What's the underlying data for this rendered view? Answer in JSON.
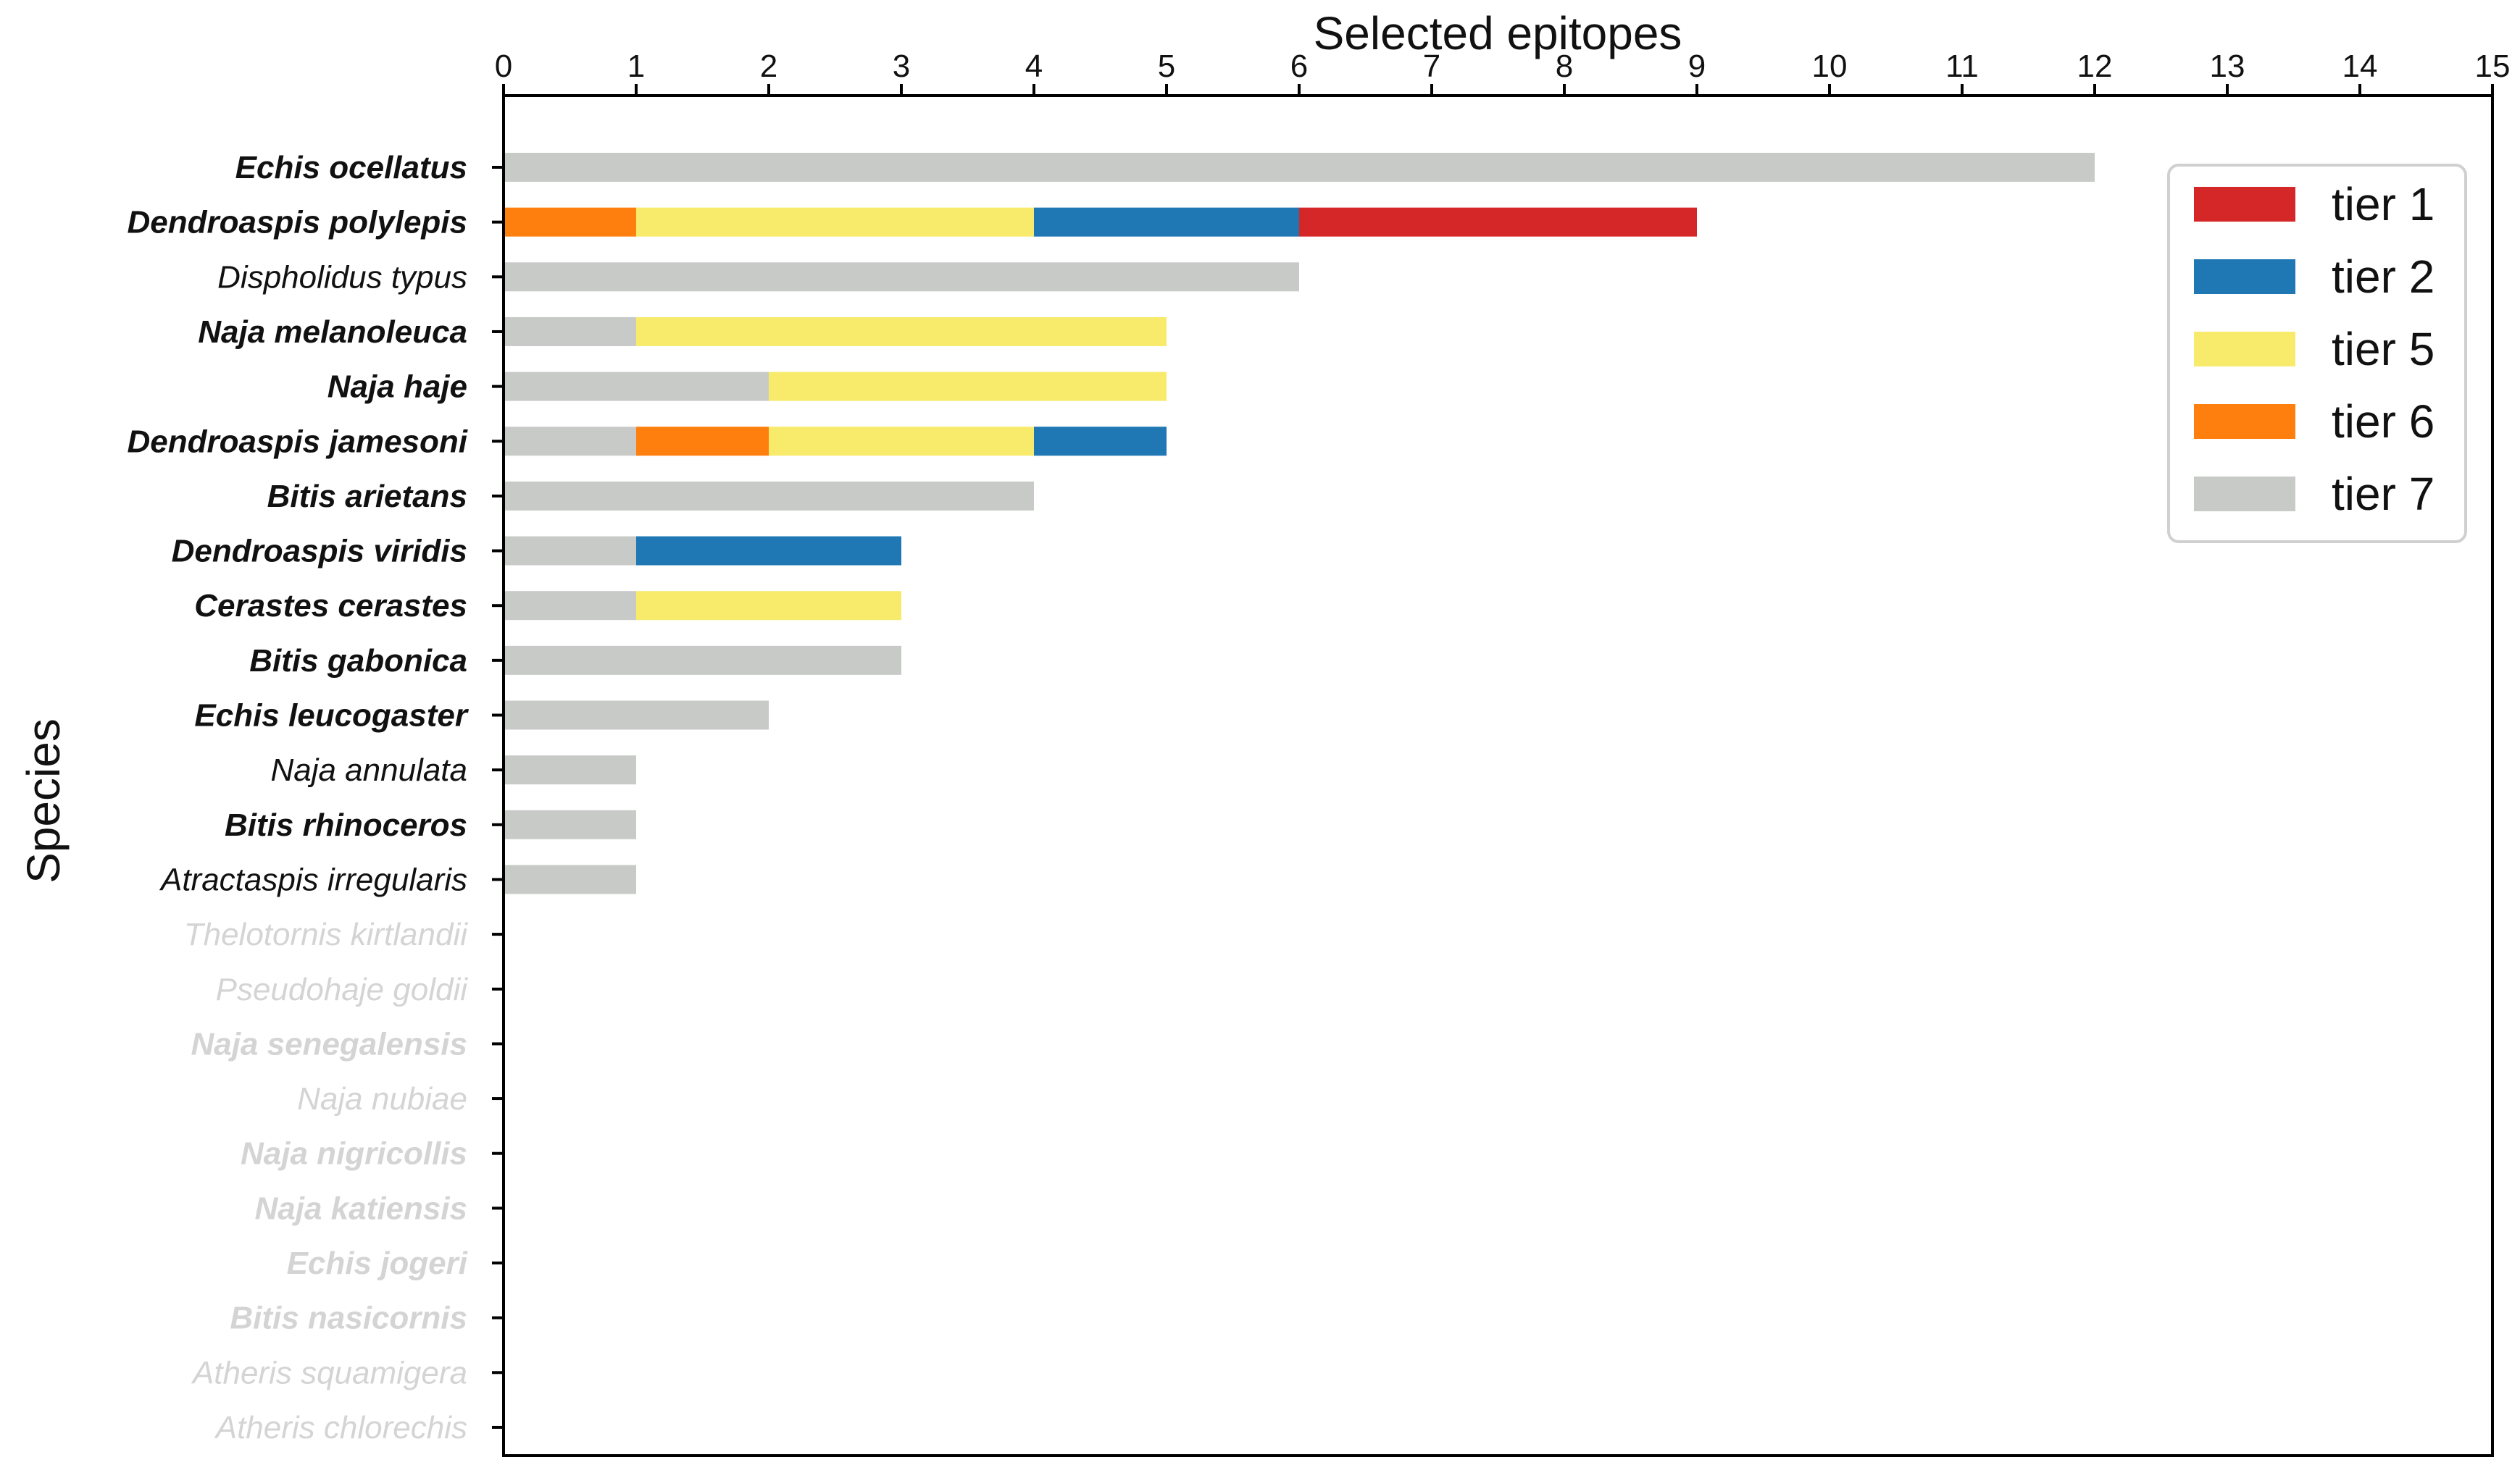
{
  "chart_data": {
    "type": "bar",
    "orientation": "horizontal",
    "stacked": true,
    "xlabel": "Selected epitopes",
    "ylabel": "Species",
    "xlim": [
      0,
      15
    ],
    "x_ticks": [
      0,
      1,
      2,
      3,
      4,
      5,
      6,
      7,
      8,
      9,
      10,
      11,
      12,
      13,
      14,
      15
    ],
    "x_axis_position": "top",
    "grid": false,
    "legend_position": "top-right",
    "series_colors": {
      "tier 1": "#d62728",
      "tier 2": "#1f77b4",
      "tier 5": "#f8ea6a",
      "tier 6": "#ff7f0e",
      "tier 7": "#c8cac8"
    },
    "legend": [
      "tier 1",
      "tier 2",
      "tier 5",
      "tier 6",
      "tier 7"
    ],
    "stack_order": [
      "tier 7",
      "tier 6",
      "tier 5",
      "tier 2",
      "tier 1"
    ],
    "categories": [
      {
        "name": "Echis ocellatus",
        "bold": true,
        "faded": false
      },
      {
        "name": "Dendroaspis polylepis",
        "bold": true,
        "faded": false
      },
      {
        "name": "Dispholidus typus",
        "bold": false,
        "faded": false
      },
      {
        "name": "Naja melanoleuca",
        "bold": true,
        "faded": false
      },
      {
        "name": "Naja haje",
        "bold": true,
        "faded": false
      },
      {
        "name": "Dendroaspis jamesoni",
        "bold": true,
        "faded": false
      },
      {
        "name": "Bitis arietans",
        "bold": true,
        "faded": false
      },
      {
        "name": "Dendroaspis viridis",
        "bold": true,
        "faded": false
      },
      {
        "name": "Cerastes cerastes",
        "bold": true,
        "faded": false
      },
      {
        "name": "Bitis gabonica",
        "bold": true,
        "faded": false
      },
      {
        "name": "Echis leucogaster",
        "bold": true,
        "faded": false
      },
      {
        "name": "Naja annulata",
        "bold": false,
        "faded": false
      },
      {
        "name": "Bitis rhinoceros",
        "bold": true,
        "faded": false
      },
      {
        "name": "Atractaspis irregularis",
        "bold": false,
        "faded": false
      },
      {
        "name": "Thelotornis kirtlandii",
        "bold": false,
        "faded": true
      },
      {
        "name": "Pseudohaje goldii",
        "bold": false,
        "faded": true
      },
      {
        "name": "Naja senegalensis",
        "bold": true,
        "faded": true
      },
      {
        "name": "Naja nubiae",
        "bold": false,
        "faded": true
      },
      {
        "name": "Naja nigricollis",
        "bold": true,
        "faded": true
      },
      {
        "name": "Naja katiensis",
        "bold": true,
        "faded": true
      },
      {
        "name": "Echis jogeri",
        "bold": true,
        "faded": true
      },
      {
        "name": "Bitis nasicornis",
        "bold": true,
        "faded": true
      },
      {
        "name": "Atheris squamigera",
        "bold": false,
        "faded": true
      },
      {
        "name": "Atheris chlorechis",
        "bold": false,
        "faded": true
      }
    ],
    "series": [
      {
        "name": "tier 7",
        "values": [
          12,
          0,
          6,
          1,
          2,
          1,
          4,
          1,
          1,
          3,
          2,
          1,
          1,
          1,
          0,
          0,
          0,
          0,
          0,
          0,
          0,
          0,
          0,
          0
        ]
      },
      {
        "name": "tier 6",
        "values": [
          0,
          1,
          0,
          0,
          0,
          1,
          0,
          0,
          0,
          0,
          0,
          0,
          0,
          0,
          0,
          0,
          0,
          0,
          0,
          0,
          0,
          0,
          0,
          0
        ]
      },
      {
        "name": "tier 5",
        "values": [
          0,
          3,
          0,
          4,
          3,
          2,
          0,
          0,
          2,
          0,
          0,
          0,
          0,
          0,
          0,
          0,
          0,
          0,
          0,
          0,
          0,
          0,
          0,
          0
        ]
      },
      {
        "name": "tier 2",
        "values": [
          0,
          2,
          0,
          0,
          0,
          1,
          0,
          2,
          0,
          0,
          0,
          0,
          0,
          0,
          0,
          0,
          0,
          0,
          0,
          0,
          0,
          0,
          0,
          0
        ]
      },
      {
        "name": "tier 1",
        "values": [
          0,
          3,
          0,
          0,
          0,
          0,
          0,
          0,
          0,
          0,
          0,
          0,
          0,
          0,
          0,
          0,
          0,
          0,
          0,
          0,
          0,
          0,
          0,
          0
        ]
      }
    ]
  }
}
